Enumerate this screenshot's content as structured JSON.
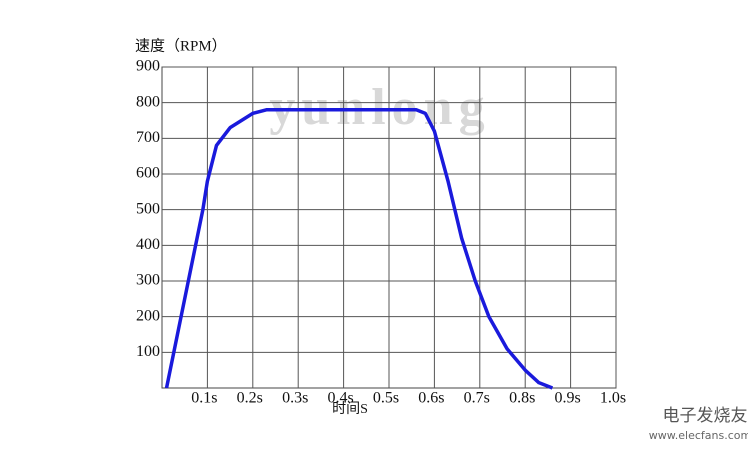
{
  "chart_data": {
    "type": "line",
    "y_label": "速度（RPM）",
    "x_label": "时间S",
    "watermark": "yunlong",
    "logo": "电子发烧友",
    "logo_url": "www.elecfans.com",
    "xlim": [
      0,
      1.0
    ],
    "ylim": [
      0,
      900
    ],
    "xticks": [
      {
        "value": 0.1,
        "label": "0.1s"
      },
      {
        "value": 0.2,
        "label": "0.2s"
      },
      {
        "value": 0.3,
        "label": "0.3s"
      },
      {
        "value": 0.4,
        "label": "0.4s"
      },
      {
        "value": 0.5,
        "label": "0.5s"
      },
      {
        "value": 0.6,
        "label": "0.6s"
      },
      {
        "value": 0.7,
        "label": "0.7s"
      },
      {
        "value": 0.8,
        "label": "0.8s"
      },
      {
        "value": 0.9,
        "label": "0.9s"
      },
      {
        "value": 1.0,
        "label": "1.0s"
      }
    ],
    "yticks": [
      100,
      200,
      300,
      400,
      500,
      600,
      700,
      800,
      900
    ],
    "grid": true,
    "series": [
      {
        "color": "#1a1adc",
        "x": [
          0.01,
          0.05,
          0.09,
          0.1,
          0.12,
          0.15,
          0.2,
          0.23,
          0.3,
          0.4,
          0.56,
          0.58,
          0.6,
          0.63,
          0.66,
          0.69,
          0.72,
          0.76,
          0.8,
          0.83,
          0.86
        ],
        "values": [
          0,
          250,
          500,
          580,
          680,
          730,
          770,
          780,
          780,
          780,
          780,
          770,
          720,
          580,
          420,
          300,
          200,
          110,
          50,
          15,
          0
        ]
      }
    ]
  }
}
